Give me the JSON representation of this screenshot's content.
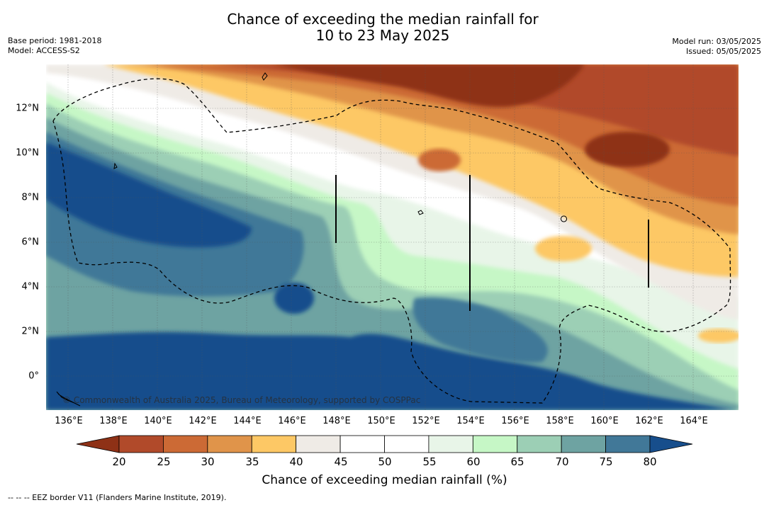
{
  "title": {
    "line1": "Chance of exceeding the median rainfall for",
    "line2": "10 to 23 May 2025"
  },
  "meta": {
    "base_period": "Base period: 1981-2018",
    "model": "Model: ACCESS-S2",
    "model_run": "Model run: 03/05/2025",
    "issued": "Issued: 05/05/2025"
  },
  "map": {
    "lat_labels": [
      "12°N",
      "10°N",
      "8°N",
      "6°N",
      "4°N",
      "2°N",
      "0°"
    ],
    "lon_labels": [
      "136°E",
      "138°E",
      "140°E",
      "142°E",
      "144°E",
      "146°E",
      "148°E",
      "150°E",
      "152°E",
      "154°E",
      "156°E",
      "158°E",
      "160°E",
      "162°E",
      "164°E"
    ],
    "credit": "© Commonwealth of Australia 2025, Bureau of Meteorology, supported by COSPPac"
  },
  "colorbar": {
    "ticks": [
      "20",
      "25",
      "30",
      "35",
      "40",
      "45",
      "50",
      "55",
      "60",
      "65",
      "70",
      "75",
      "80"
    ],
    "colors": [
      "#8e3116",
      "#b14a2a",
      "#cc6a35",
      "#e0944a",
      "#fdc865",
      "#efebe6",
      "#ffffff",
      "#ffffff",
      "#e8f5e8",
      "#c6f7c6",
      "#9ccfb5",
      "#6ea3a2",
      "#417898",
      "#174e8c"
    ],
    "label": "Chance of exceeding median rainfall (%)"
  },
  "footer": "--  --  -- EEZ border V11 (Flanders Marine Institute, 2019)."
}
